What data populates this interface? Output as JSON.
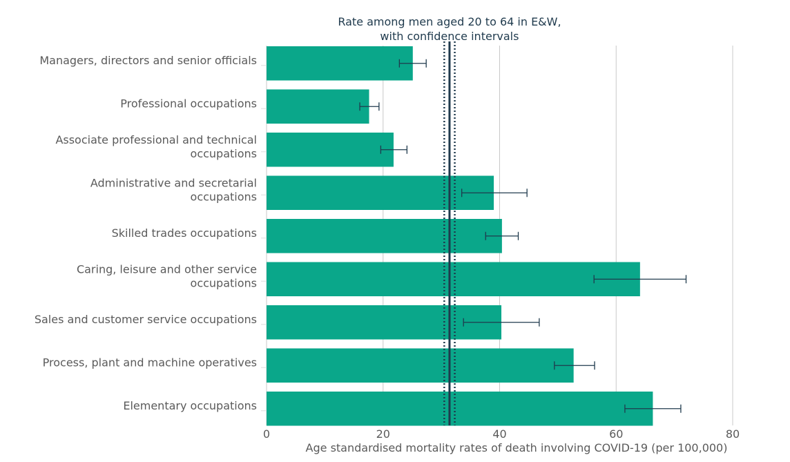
{
  "chart_data": {
    "type": "bar",
    "orientation": "horizontal",
    "categories": [
      [
        "Managers, directors and senior officials"
      ],
      [
        "Professional occupations"
      ],
      [
        "Associate professional and technical",
        "occupations"
      ],
      [
        "Administrative and secretarial",
        "occupations"
      ],
      [
        "Skilled trades occupations"
      ],
      [
        "Caring, leisure and other service",
        "occupations"
      ],
      [
        "Sales and customer service occupations"
      ],
      [
        "Process, plant and machine operatives"
      ],
      [
        "Elementary occupations"
      ]
    ],
    "values": [
      25.1,
      17.6,
      21.8,
      39.0,
      40.4,
      64.1,
      40.3,
      52.7,
      66.3
    ],
    "ci_low": [
      22.8,
      16.0,
      19.6,
      33.5,
      37.6,
      56.2,
      33.8,
      49.4,
      61.5
    ],
    "ci_high": [
      27.4,
      19.3,
      24.1,
      44.7,
      43.2,
      72.0,
      46.8,
      56.3,
      71.1
    ],
    "reference": {
      "title": [
        "Rate among men aged 20 to 64 in E&W,",
        "with confidence intervals"
      ],
      "value": 31.4,
      "ci_low": 30.5,
      "ci_high": 32.3,
      "color": "#1f3a4d"
    },
    "xlabel": "Age standardised mortality rates of death involving COVID-19 (per 100,000)",
    "xlim": [
      0,
      80
    ],
    "xticks": [
      0,
      20,
      40,
      60,
      80
    ],
    "grid": true,
    "colors": {
      "bar": "#0aa78a",
      "error_bar": "#1f3a4d",
      "grid": "#c8c8c8",
      "text": "#5a5a5a"
    }
  }
}
